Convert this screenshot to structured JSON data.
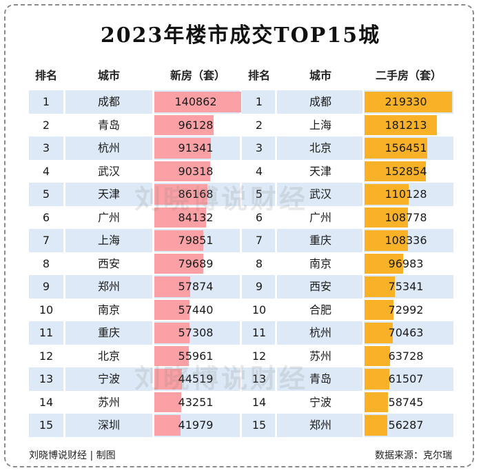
{
  "title": "2023年楼市成交TOP15城",
  "headers": {
    "rank_left": "排名",
    "city_left": "城市",
    "new_house": "新房（套）",
    "rank_right": "排名",
    "city_right": "城市",
    "second_hand": "二手房（套）"
  },
  "watermark": "刘晓博说财经",
  "footer": {
    "left": "刘晓博说财经 | 制图",
    "right": "数据来源：克尔瑞"
  },
  "colors": {
    "new_bar": "#fba1a5",
    "second_bar": "#f9b127",
    "row_shade": "#dde9f6"
  },
  "chart_data": [
    {
      "type": "bar",
      "title": "2023年楼市成交TOP15城",
      "series": [
        {
          "name": "新房（套）"
        }
      ],
      "ranks": [
        1,
        2,
        3,
        4,
        5,
        6,
        7,
        8,
        9,
        10,
        11,
        12,
        13,
        14,
        15
      ],
      "categories": [
        "成都",
        "青岛",
        "杭州",
        "武汉",
        "天津",
        "广州",
        "上海",
        "西安",
        "郑州",
        "南京",
        "重庆",
        "北京",
        "宁波",
        "苏州",
        "深圳"
      ],
      "values": [
        140862,
        96128,
        91341,
        90318,
        86168,
        84132,
        79851,
        79689,
        57874,
        57440,
        57308,
        55961,
        44519,
        43251,
        41979
      ]
    },
    {
      "type": "bar",
      "series": [
        {
          "name": "二手房（套）"
        }
      ],
      "ranks": [
        1,
        2,
        3,
        4,
        5,
        6,
        7,
        8,
        9,
        10,
        11,
        12,
        13,
        14,
        15
      ],
      "categories": [
        "成都",
        "上海",
        "北京",
        "天津",
        "武汉",
        "广州",
        "重庆",
        "南京",
        "西安",
        "合肥",
        "杭州",
        "苏州",
        "青岛",
        "宁波",
        "郑州"
      ],
      "values": [
        219330,
        181213,
        156451,
        152854,
        110128,
        108778,
        108336,
        96983,
        75341,
        72992,
        70463,
        63728,
        61507,
        58745,
        56287
      ]
    }
  ]
}
